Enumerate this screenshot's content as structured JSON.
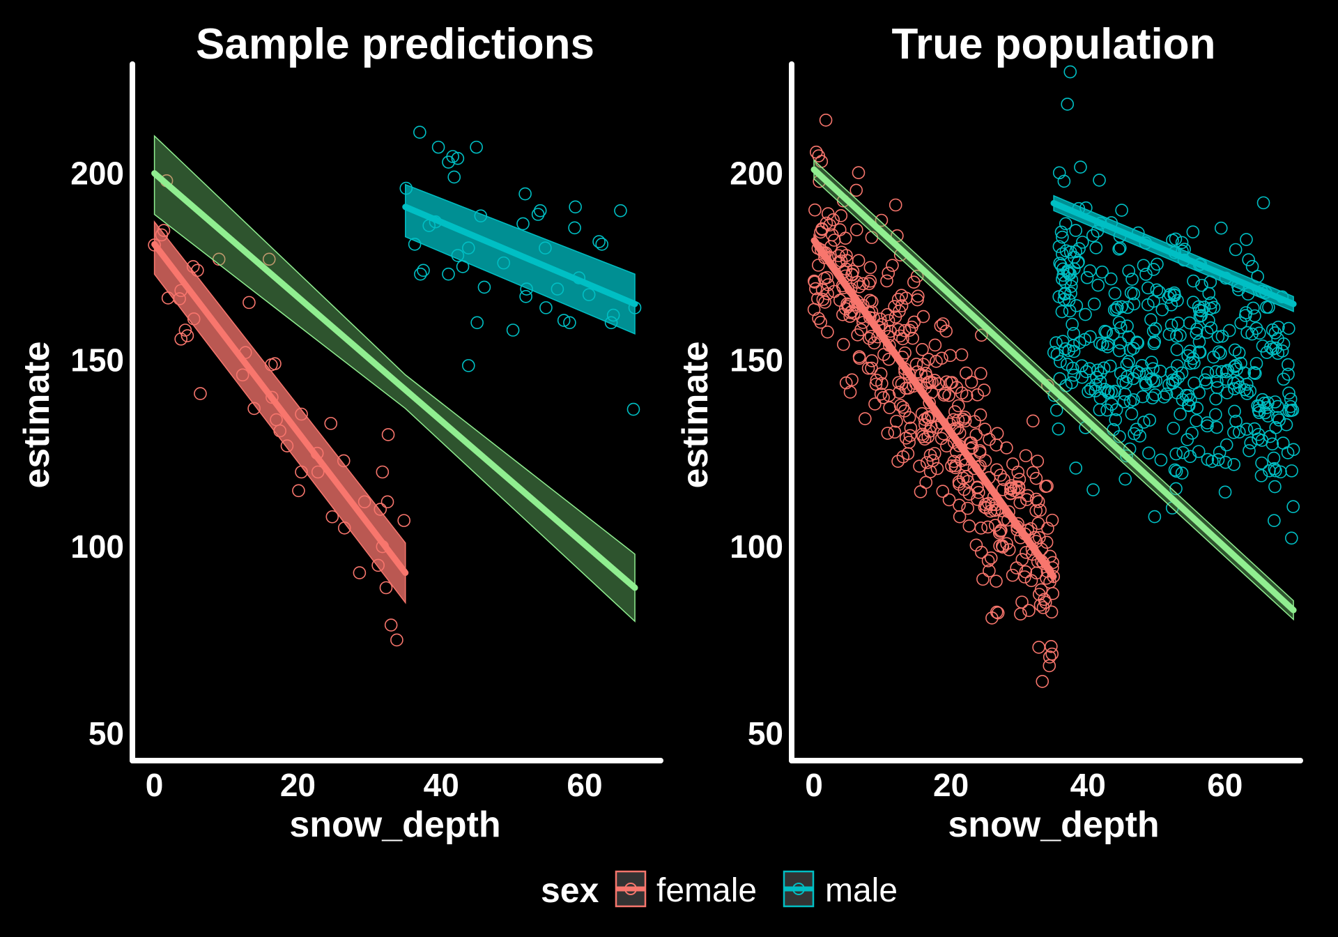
{
  "chart_data": [
    {
      "type": "scatter",
      "title": "Sample predictions",
      "xlabel": "snow_depth",
      "ylabel": "estimate",
      "xticks": [
        0,
        20,
        40,
        60
      ],
      "yticks": [
        50,
        100,
        150,
        200
      ],
      "xlim": [
        -3,
        71
      ],
      "ylim": [
        42,
        228
      ],
      "series": [
        {
          "name": "female",
          "color": "#F8766D",
          "points": [
            [
              0,
              180.8
            ],
            [
              1.7,
              198
            ],
            [
              1,
              183.5
            ],
            [
              1.3,
              184.7
            ],
            [
              1.9,
              166.6
            ],
            [
              3.7,
              168.6
            ],
            [
              3.5,
              166.4
            ],
            [
              5.4,
              175
            ],
            [
              6,
              174
            ],
            [
              4.3,
              158
            ],
            [
              3.7,
              155.6
            ],
            [
              4.6,
              156.5
            ],
            [
              5.5,
              161
            ],
            [
              6.4,
              141
            ],
            [
              9,
              177
            ],
            [
              16,
              177
            ],
            [
              13.2,
              165.4
            ],
            [
              12.7,
              152
            ],
            [
              12.3,
              146
            ],
            [
              13.9,
              137
            ],
            [
              16.3,
              148.7
            ],
            [
              16.8,
              149
            ],
            [
              16.4,
              140
            ],
            [
              17,
              134
            ],
            [
              17.5,
              131
            ],
            [
              18.5,
              127
            ],
            [
              20.5,
              135.5
            ],
            [
              20.5,
              120
            ],
            [
              20.1,
              115
            ],
            [
              22.7,
              125
            ],
            [
              22.8,
              120
            ],
            [
              24.6,
              133
            ],
            [
              24.8,
              108
            ],
            [
              26.5,
              105
            ],
            [
              26.4,
              123
            ],
            [
              28.6,
              93
            ],
            [
              29.3,
              112
            ],
            [
              31.8,
              120
            ],
            [
              31.5,
              110
            ],
            [
              32.6,
              130
            ],
            [
              32.5,
              112
            ],
            [
              31.2,
              95
            ],
            [
              32.3,
              89
            ],
            [
              33,
              79
            ],
            [
              33.8,
              75
            ],
            [
              34.8,
              107
            ],
            [
              31.8,
              100
            ]
          ],
          "fit": {
            "x": [
              0,
              35
            ],
            "y": [
              181,
              93
            ],
            "lower": [
              173,
              85
            ],
            "upper": [
              187,
              101
            ]
          }
        },
        {
          "name": "male",
          "color": "#00BFC4",
          "points": [
            [
              37,
              211
            ],
            [
              39.6,
              207
            ],
            [
              41,
              203
            ],
            [
              41.6,
              204.5
            ],
            [
              42.3,
              204
            ],
            [
              41.8,
              199
            ],
            [
              44.9,
              207
            ],
            [
              35.1,
              196
            ],
            [
              36.3,
              181
            ],
            [
              37.1,
              173
            ],
            [
              37.5,
              174
            ],
            [
              38.3,
              186
            ],
            [
              39.2,
              187
            ],
            [
              41,
              173
            ],
            [
              42.3,
              178
            ],
            [
              43,
              175
            ],
            [
              43.8,
              180
            ],
            [
              45.5,
              188.6
            ],
            [
              45,
              160
            ],
            [
              43.8,
              148.5
            ],
            [
              46,
              169.5
            ],
            [
              48.7,
              176
            ],
            [
              50,
              158
            ],
            [
              51.7,
              194.5
            ],
            [
              51.4,
              186.5
            ],
            [
              51.9,
              169
            ],
            [
              51.8,
              167
            ],
            [
              53.5,
              189
            ],
            [
              53.8,
              190
            ],
            [
              54.6,
              164
            ],
            [
              54.5,
              180
            ],
            [
              56.2,
              169
            ],
            [
              57.1,
              160.6
            ],
            [
              57.9,
              160
            ],
            [
              58.7,
              191
            ],
            [
              58.6,
              185.4
            ],
            [
              59.2,
              172
            ],
            [
              60.6,
              167.5
            ],
            [
              62,
              181.7
            ],
            [
              62.4,
              181
            ],
            [
              63.7,
              160
            ],
            [
              65,
              190
            ],
            [
              66.8,
              136.8
            ],
            [
              67,
              164
            ],
            [
              64,
              162
            ]
          ],
          "fit": {
            "x": [
              35,
              67
            ],
            "y": [
              191,
              165
            ],
            "lower": [
              183,
              157
            ],
            "upper": [
              197,
              173
            ]
          }
        }
      ],
      "pooled_fit": {
        "color": "#90EE90",
        "x": [
          0,
          35,
          67
        ],
        "y": [
          200,
          142,
          89
        ],
        "lower": [
          189,
          137,
          80
        ],
        "upper": [
          210,
          146,
          98
        ]
      }
    },
    {
      "type": "scatter",
      "title": "True population",
      "xlabel": "snow_depth",
      "ylabel": "estimate",
      "xticks": [
        0,
        20,
        40,
        60
      ],
      "yticks": [
        50,
        100,
        150,
        200
      ],
      "xlim": [
        -3,
        73
      ],
      "ylim": [
        42,
        228
      ],
      "series": [
        {
          "name": "female",
          "color": "#F8766D",
          "generated": {
            "n": 420,
            "x_range": [
              0,
              35
            ],
            "intercept": 182,
            "slope": -2.57,
            "sd": 13,
            "seed": 7
          },
          "fit": {
            "x": [
              0,
              35
            ],
            "y": [
              182,
              92
            ],
            "lower": [
              180.5,
              90.5
            ],
            "upper": [
              183.5,
              93.5
            ]
          }
        },
        {
          "name": "male",
          "color": "#00BFC4",
          "generated": {
            "n": 420,
            "x_range": [
              35,
              70
            ],
            "intercept": 192,
            "slope": -0.77,
            "sd": 18,
            "seed": 11
          },
          "fit": {
            "x": [
              35,
              70
            ],
            "y": [
              192,
              165
            ],
            "lower": [
              190,
              163
            ],
            "upper": [
              194,
              167
            ]
          }
        }
      ],
      "pooled_fit": {
        "color": "#90EE90",
        "x": [
          0,
          70
        ],
        "y": [
          201,
          83
        ],
        "lower": [
          198.5,
          80.5
        ],
        "upper": [
          203.5,
          85.5
        ]
      }
    }
  ],
  "legend": {
    "title": "sex",
    "items": [
      {
        "label": "female",
        "color": "#F8766D"
      },
      {
        "label": "male",
        "color": "#00BFC4"
      }
    ]
  }
}
